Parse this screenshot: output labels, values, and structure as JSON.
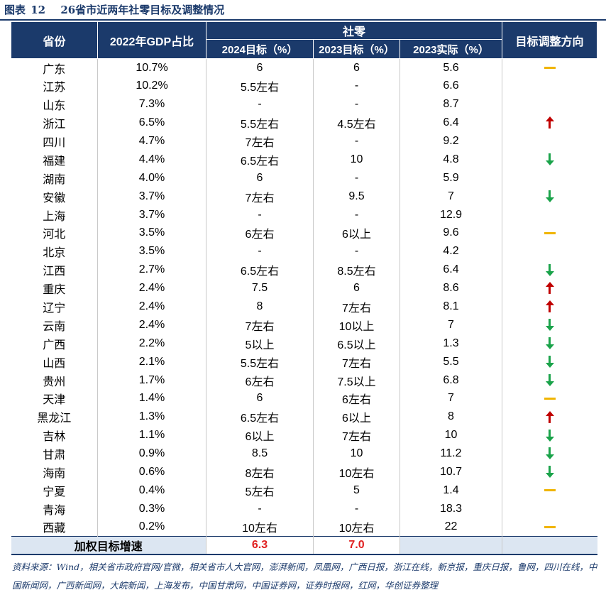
{
  "figure": {
    "label": "图表",
    "number": "12",
    "title": "26省市近两年社零目标及调整情况"
  },
  "table": {
    "headers": {
      "province": "省份",
      "gdp_share": "2022年GDP占比",
      "retail_group": "社零",
      "target_2024": "2024目标（%）",
      "target_2023": "2023目标（%）",
      "actual_2023": "2023实际（%）",
      "direction": "目标调整方向"
    },
    "direction_icons": {
      "up": "arrow-up-icon",
      "down": "arrow-down-icon",
      "flat": "flat-dash-icon"
    },
    "colors": {
      "header_bg": "#1b3a6b",
      "up_arrow": "#c00000",
      "down_arrow": "#1aa34a",
      "flat_dash": "#f0b400",
      "summary_value": "#e02020"
    },
    "rows": [
      {
        "province": "广东",
        "gdp_share": "10.7%",
        "target_2024": "6",
        "target_2023": "6",
        "actual_2023": "5.6",
        "direction": "flat"
      },
      {
        "province": "江苏",
        "gdp_share": "10.2%",
        "target_2024": "5.5左右",
        "target_2023": "-",
        "actual_2023": "6.6",
        "direction": ""
      },
      {
        "province": "山东",
        "gdp_share": "7.3%",
        "target_2024": "-",
        "target_2023": "-",
        "actual_2023": "8.7",
        "direction": ""
      },
      {
        "province": "浙江",
        "gdp_share": "6.5%",
        "target_2024": "5.5左右",
        "target_2023": "4.5左右",
        "actual_2023": "6.4",
        "direction": "up"
      },
      {
        "province": "四川",
        "gdp_share": "4.7%",
        "target_2024": "7左右",
        "target_2023": "-",
        "actual_2023": "9.2",
        "direction": ""
      },
      {
        "province": "福建",
        "gdp_share": "4.4%",
        "target_2024": "6.5左右",
        "target_2023": "10",
        "actual_2023": "4.8",
        "direction": "down"
      },
      {
        "province": "湖南",
        "gdp_share": "4.0%",
        "target_2024": "6",
        "target_2023": "-",
        "actual_2023": "5.9",
        "direction": ""
      },
      {
        "province": "安徽",
        "gdp_share": "3.7%",
        "target_2024": "7左右",
        "target_2023": "9.5",
        "actual_2023": "7",
        "direction": "down"
      },
      {
        "province": "上海",
        "gdp_share": "3.7%",
        "target_2024": "-",
        "target_2023": "-",
        "actual_2023": "12.9",
        "direction": ""
      },
      {
        "province": "河北",
        "gdp_share": "3.5%",
        "target_2024": "6左右",
        "target_2023": "6以上",
        "actual_2023": "9.6",
        "direction": "flat"
      },
      {
        "province": "北京",
        "gdp_share": "3.5%",
        "target_2024": "-",
        "target_2023": "-",
        "actual_2023": "4.2",
        "direction": ""
      },
      {
        "province": "江西",
        "gdp_share": "2.7%",
        "target_2024": "6.5左右",
        "target_2023": "8.5左右",
        "actual_2023": "6.4",
        "direction": "down"
      },
      {
        "province": "重庆",
        "gdp_share": "2.4%",
        "target_2024": "7.5",
        "target_2023": "6",
        "actual_2023": "8.6",
        "direction": "up"
      },
      {
        "province": "辽宁",
        "gdp_share": "2.4%",
        "target_2024": "8",
        "target_2023": "7左右",
        "actual_2023": "8.1",
        "direction": "up"
      },
      {
        "province": "云南",
        "gdp_share": "2.4%",
        "target_2024": "7左右",
        "target_2023": "10以上",
        "actual_2023": "7",
        "direction": "down"
      },
      {
        "province": "广西",
        "gdp_share": "2.2%",
        "target_2024": "5以上",
        "target_2023": "6.5以上",
        "actual_2023": "1.3",
        "direction": "down"
      },
      {
        "province": "山西",
        "gdp_share": "2.1%",
        "target_2024": "5.5左右",
        "target_2023": "7左右",
        "actual_2023": "5.5",
        "direction": "down"
      },
      {
        "province": "贵州",
        "gdp_share": "1.7%",
        "target_2024": "6左右",
        "target_2023": "7.5以上",
        "actual_2023": "6.8",
        "direction": "down"
      },
      {
        "province": "天津",
        "gdp_share": "1.4%",
        "target_2024": "6",
        "target_2023": "6左右",
        "actual_2023": "7",
        "direction": "flat"
      },
      {
        "province": "黑龙江",
        "gdp_share": "1.3%",
        "target_2024": "6.5左右",
        "target_2023": "6以上",
        "actual_2023": "8",
        "direction": "up"
      },
      {
        "province": "吉林",
        "gdp_share": "1.1%",
        "target_2024": "6以上",
        "target_2023": "7左右",
        "actual_2023": "10",
        "direction": "down"
      },
      {
        "province": "甘肃",
        "gdp_share": "0.9%",
        "target_2024": "8.5",
        "target_2023": "10",
        "actual_2023": "11.2",
        "direction": "down"
      },
      {
        "province": "海南",
        "gdp_share": "0.6%",
        "target_2024": "8左右",
        "target_2023": "10左右",
        "actual_2023": "10.7",
        "direction": "down"
      },
      {
        "province": "宁夏",
        "gdp_share": "0.4%",
        "target_2024": "5左右",
        "target_2023": "5",
        "actual_2023": "1.4",
        "direction": "flat"
      },
      {
        "province": "青海",
        "gdp_share": "0.3%",
        "target_2024": "-",
        "target_2023": "-",
        "actual_2023": "18.3",
        "direction": ""
      },
      {
        "province": "西藏",
        "gdp_share": "0.2%",
        "target_2024": "10左右",
        "target_2023": "10左右",
        "actual_2023": "22",
        "direction": "flat"
      }
    ],
    "summary": {
      "label": "加权目标增速",
      "target_2024": "6.3",
      "target_2023": "7.0"
    }
  },
  "source_note": "资料来源：Wind，相关省市政府官网/官微，相关省市人大官网，澎湃新闻，凤凰网，广西日报，浙江在线，新京报，重庆日报，鲁网，四川在线，中国新闻网，广西新闻网，大皖新闻，上海发布，中国甘肃网，中国证券网，证券时报网，红网，华创证券整理"
}
